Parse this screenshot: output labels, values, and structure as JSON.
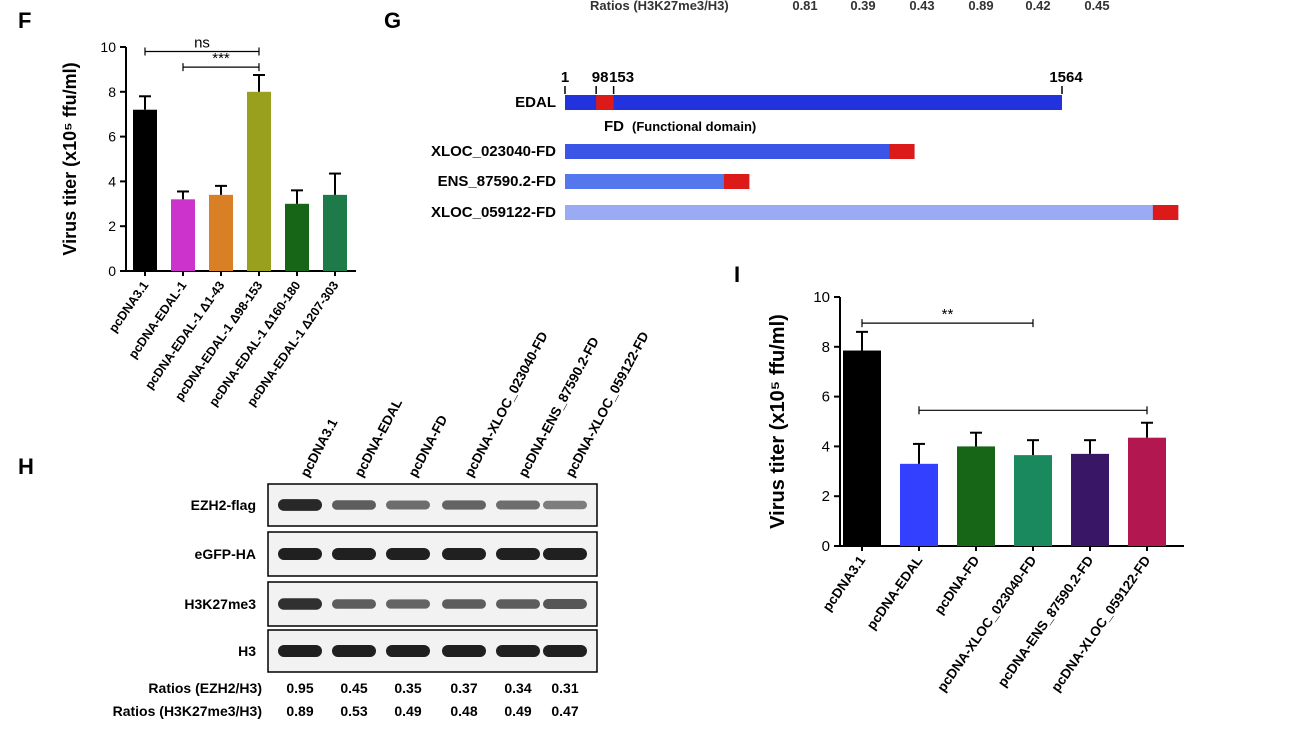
{
  "panel_labels": {
    "F": "F",
    "G": "G",
    "H": "H",
    "I": "I"
  },
  "top_strip": {
    "label": "Ratios (H3K27me3/H3)",
    "values": [
      "0.81",
      "0.39",
      "0.43",
      "0.89",
      "0.42",
      "0.45"
    ]
  },
  "chart_data": [
    {
      "id": "F",
      "type": "bar",
      "title": "",
      "xlabel": "",
      "ylabel": "Virus titer (x10⁵ ffu/ml)",
      "ylim": [
        0,
        10
      ],
      "yticks": [
        0,
        2,
        4,
        6,
        8,
        10
      ],
      "categories": [
        "pcDNA3.1",
        "pcDNA-EDAL-1",
        "pcDNA-EDAL-1 Δ1-43",
        "pcDNA-EDAL-1 Δ98-153",
        "pcDNA-EDAL-1 Δ160-180",
        "pcDNA-EDAL-1 Δ207-303"
      ],
      "values": [
        7.2,
        3.2,
        3.4,
        8.0,
        3.0,
        3.4
      ],
      "errors": [
        0.6,
        0.35,
        0.4,
        0.75,
        0.6,
        0.95
      ],
      "colors": [
        "#000000",
        "#cc33cc",
        "#d98026",
        "#99a01e",
        "#176617",
        "#1f7a4a"
      ],
      "annotations": [
        {
          "text": "ns",
          "from": 0,
          "to": 3,
          "y": 9.8
        },
        {
          "text": "***",
          "from": 1,
          "to": 3,
          "y": 9.1
        }
      ]
    },
    {
      "id": "I",
      "type": "bar",
      "title": "",
      "xlabel": "",
      "ylabel": "Virus titer (x10⁵ ffu/ml)",
      "ylim": [
        0,
        10
      ],
      "yticks": [
        0,
        2,
        4,
        6,
        8,
        10
      ],
      "categories": [
        "pcDNA3.1",
        "pcDNA-EDAL",
        "pcDNA-FD",
        "pcDNA-XLOC_023040-FD",
        "pcDNA-ENS_87590.2-FD",
        "pcDNA-XLOC_059122-FD"
      ],
      "values": [
        7.85,
        3.3,
        4.0,
        3.65,
        3.7,
        4.35
      ],
      "errors": [
        0.75,
        0.8,
        0.55,
        0.6,
        0.55,
        0.6
      ],
      "colors": [
        "#000000",
        "#3340ff",
        "#176617",
        "#1a8a5e",
        "#3a1766",
        "#b3174f"
      ],
      "annotations": [
        {
          "text": "**",
          "from": 0,
          "to": 3,
          "y": 8.95
        },
        {
          "text": "",
          "from": 1,
          "to": 5,
          "y": 5.45
        }
      ]
    }
  ],
  "domain_diagram": {
    "positions": [
      "1",
      "98",
      "153",
      "1564"
    ],
    "rows": [
      {
        "label": "EDAL",
        "length": 1564,
        "color": "#2233dd",
        "fd_start": 98,
        "fd_end": 153
      },
      {
        "label": "XLOC_023040-FD",
        "length": 1100,
        "color": "#3b55e6",
        "fd_start": 1020,
        "fd_end": 1100
      },
      {
        "label": "ENS_87590.2-FD",
        "length": 580,
        "color": "#5577ee",
        "fd_start": 500,
        "fd_end": 580
      },
      {
        "label": "XLOC_059122-FD",
        "length": 1930,
        "color": "#9aaaf5",
        "fd_start": 1850,
        "fd_end": 1930
      }
    ],
    "fd_label": "FD",
    "fd_label_note": "(Functional domain)",
    "fd_color": "#dd1a1a"
  },
  "blot": {
    "lanes": [
      "pcDNA3.1",
      "pcDNA-EDAL",
      "pcDNA-FD",
      "pcDNA-XLOC_023040-FD",
      "pcDNA-ENS_87590.2-FD",
      "pcDNA-XLOC_059122-FD"
    ],
    "rows": [
      {
        "label": "EZH2-flag",
        "intensity": [
          0.95,
          0.6,
          0.5,
          0.55,
          0.5,
          0.4
        ]
      },
      {
        "label": "eGFP-HA",
        "intensity": [
          1,
          1,
          1,
          1,
          1,
          1
        ]
      },
      {
        "label": "H3K27me3",
        "intensity": [
          0.9,
          0.6,
          0.55,
          0.6,
          0.6,
          0.65
        ]
      },
      {
        "label": "H3",
        "intensity": [
          1,
          1,
          1,
          1,
          1,
          1
        ]
      }
    ],
    "ratio_rows": [
      {
        "label": "Ratios (EZH2/H3)",
        "values": [
          "0.95",
          "0.45",
          "0.35",
          "0.37",
          "0.34",
          "0.31"
        ]
      },
      {
        "label": "Ratios (H3K27me3/H3)",
        "values": [
          "0.89",
          "0.53",
          "0.49",
          "0.48",
          "0.49",
          "0.47"
        ]
      }
    ]
  }
}
